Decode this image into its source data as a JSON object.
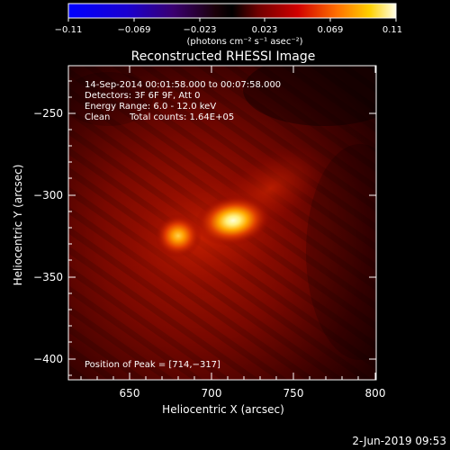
{
  "colorbar": {
    "tick_labels": [
      "−0.11",
      "−0.069",
      "−0.023",
      "0.023",
      "0.069",
      "0.11"
    ],
    "units": "(photons cm⁻² s⁻¹ asec⁻²)",
    "range": [
      -0.11,
      0.11
    ]
  },
  "title": "Reconstructed RHESSI Image",
  "info": {
    "time_range": "14-Sep-2014 00:01:58.000 to 00:07:58.000",
    "detectors": "Detectors: 3F 6F 9F, Att 0",
    "energy": "Energy Range: 6.0 - 12.0 keV",
    "method": "Clean",
    "counts": "Total counts: 1.64E+05",
    "peak": "Position of Peak = [714,−317]"
  },
  "axes": {
    "xlabel": "Heliocentric X (arcsec)",
    "ylabel": "Heliocentric Y (arcsec)",
    "x_ticks": [
      "650",
      "700",
      "750",
      "800"
    ],
    "y_ticks": [
      "−250",
      "−300",
      "−350",
      "−400"
    ],
    "x_range": [
      614,
      805
    ],
    "y_range": [
      -413,
      -221
    ]
  },
  "sources": [
    {
      "x": 714,
      "y": -317
    },
    {
      "x": 680,
      "y": -326
    }
  ],
  "footer": {
    "date": "2-Jun-2019 09:53"
  }
}
